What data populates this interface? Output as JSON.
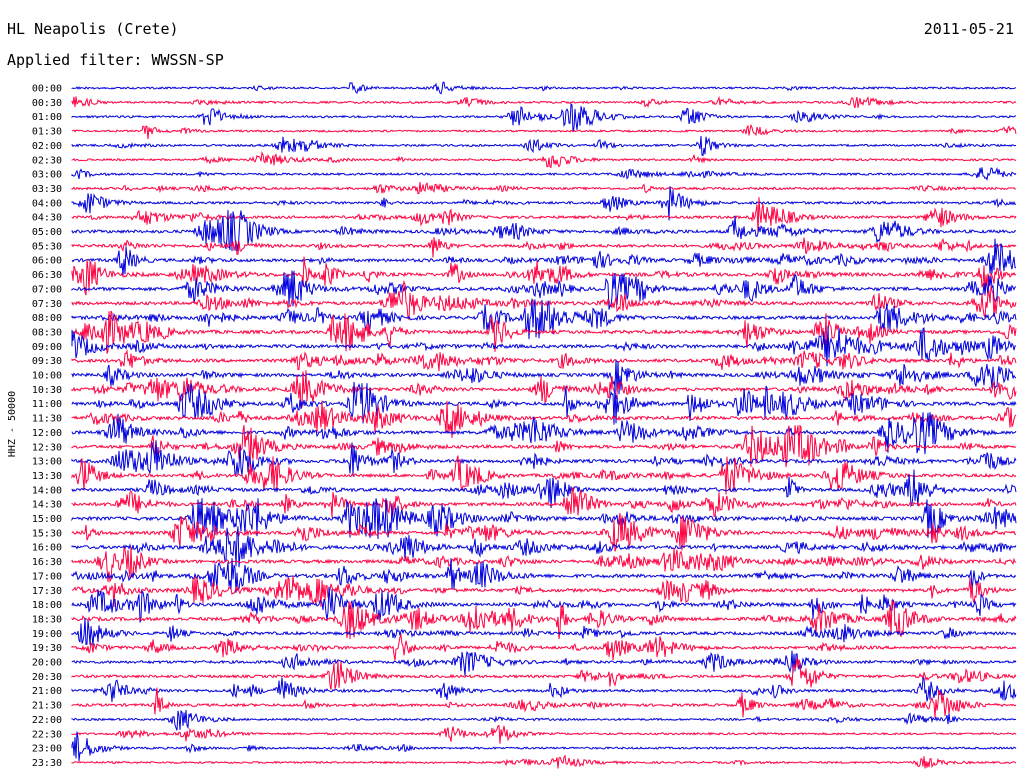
{
  "header": {
    "station": "HL Neapolis (Crete)",
    "date": "2011-05-21",
    "filter": "Applied filter: WWSSN-SP"
  },
  "chart_data": {
    "type": "line",
    "title": "HL Neapolis (Crete)",
    "subtitle": "Applied filter: WWSSN-SP",
    "ylabel": "HHZ - 50000",
    "xlabel": "",
    "grid": false,
    "colors": [
      "#0000dd",
      "#ff0040"
    ],
    "categories": [
      "00:00",
      "00:30",
      "01:00",
      "01:30",
      "02:00",
      "02:30",
      "03:00",
      "03:30",
      "04:00",
      "04:30",
      "05:00",
      "05:30",
      "06:00",
      "06:30",
      "07:00",
      "07:30",
      "08:00",
      "08:30",
      "09:00",
      "09:30",
      "10:00",
      "10:30",
      "11:00",
      "11:30",
      "12:00",
      "12:30",
      "13:00",
      "13:30",
      "14:00",
      "14:30",
      "15:00",
      "15:30",
      "16:00",
      "16:30",
      "17:00",
      "17:30",
      "18:00",
      "18:30",
      "19:00",
      "19:30",
      "20:00",
      "20:30",
      "21:00",
      "21:30",
      "22:00",
      "22:30",
      "23:00",
      "23:30"
    ],
    "activity": [
      0.12,
      0.14,
      0.16,
      0.1,
      0.18,
      0.16,
      0.18,
      0.22,
      0.35,
      0.4,
      0.55,
      0.55,
      0.62,
      0.7,
      0.7,
      0.62,
      0.66,
      0.7,
      0.66,
      0.62,
      0.66,
      0.66,
      0.7,
      0.66,
      0.62,
      0.6,
      0.66,
      0.6,
      0.6,
      0.66,
      0.7,
      0.64,
      0.7,
      0.64,
      0.7,
      0.64,
      0.72,
      0.66,
      0.52,
      0.45,
      0.42,
      0.42,
      0.46,
      0.4,
      0.14,
      0.12,
      0.14,
      0.1
    ]
  }
}
